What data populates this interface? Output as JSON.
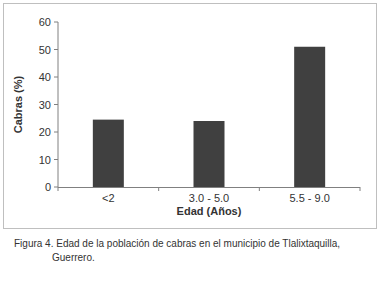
{
  "chart_data": {
    "type": "bar",
    "title": "Figura 4. Edad de la población de cabras en el municipio de Tlalixtaquilla, Guerrero.",
    "x_label": "Edad (Años)",
    "y_label": "Cabras (%)",
    "categories": [
      "<2",
      "3.0 - 5.0",
      "5.5 - 9.0"
    ],
    "values": [
      24.5,
      24,
      51
    ],
    "color": "#404040",
    "ylim": [
      0,
      60
    ],
    "yticks": [
      0,
      10,
      20,
      30,
      40,
      50,
      60
    ],
    "grid": false
  }
}
